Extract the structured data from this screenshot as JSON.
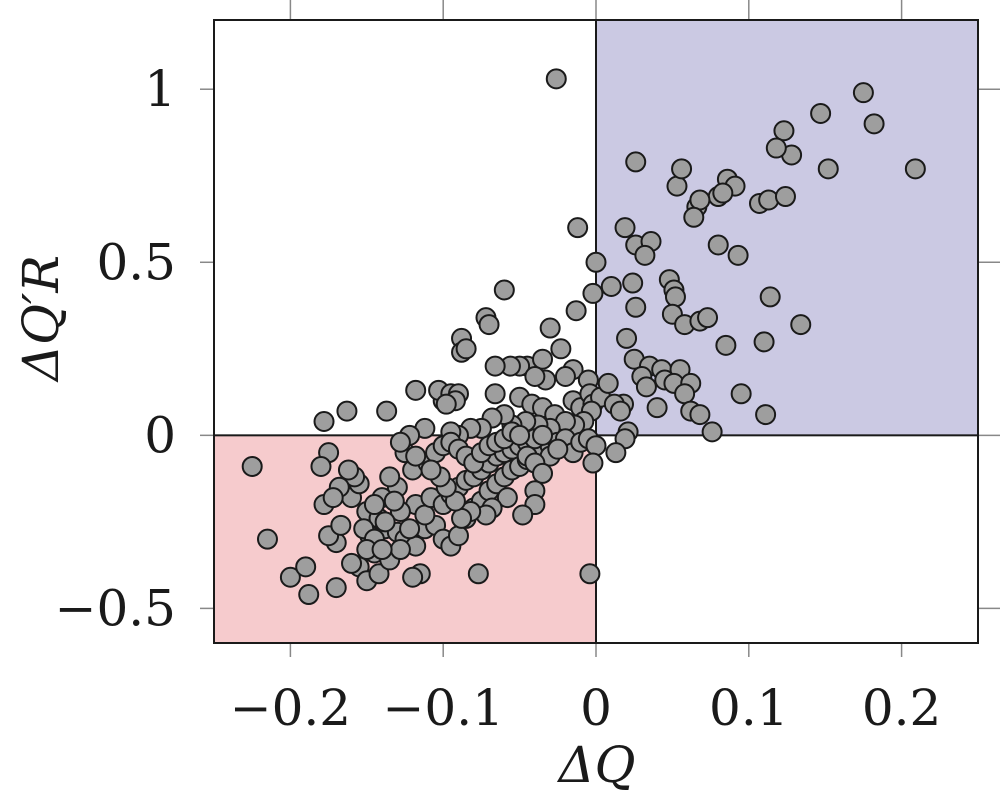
{
  "chart_data": {
    "type": "scatter",
    "title": "",
    "xlabel": "ΔQ",
    "ylabel": "ΔQ′R",
    "xlim": [
      -0.25,
      0.25
    ],
    "ylim": [
      -0.6,
      1.2
    ],
    "xticks": [
      -0.2,
      -0.1,
      0,
      0.1,
      0.2
    ],
    "yticks": [
      -0.5,
      0,
      0.5,
      1
    ],
    "xtick_labels": [
      "−0.2",
      "−0.1",
      "0",
      "0.1",
      "0.2"
    ],
    "ytick_labels": [
      "−0.5",
      "0",
      "0.5",
      "1"
    ],
    "grid": false,
    "regions": [
      {
        "x": [
          0,
          0.25
        ],
        "y": [
          0,
          1.2
        ],
        "color": "#cbc9e3"
      },
      {
        "x": [
          -0.25,
          0
        ],
        "y": [
          -0.6,
          0
        ],
        "color": "#f6cbcd"
      }
    ],
    "marker_fill": "#9e9e9e",
    "marker_edge": "#1a1a1a",
    "points": [
      [
        -0.026,
        1.03
      ],
      [
        0.175,
        0.99
      ],
      [
        0.182,
        0.9
      ],
      [
        0.147,
        0.93
      ],
      [
        0.123,
        0.88
      ],
      [
        0.128,
        0.81
      ],
      [
        0.118,
        0.83
      ],
      [
        0.152,
        0.77
      ],
      [
        0.209,
        0.77
      ],
      [
        0.053,
        0.72
      ],
      [
        0.056,
        0.77
      ],
      [
        0.026,
        0.79
      ],
      [
        0.086,
        0.74
      ],
      [
        0.091,
        0.72
      ],
      [
        0.08,
        0.69
      ],
      [
        0.083,
        0.7
      ],
      [
        0.107,
        0.67
      ],
      [
        0.113,
        0.68
      ],
      [
        0.124,
        0.69
      ],
      [
        0.066,
        0.66
      ],
      [
        0.068,
        0.68
      ],
      [
        0.064,
        0.63
      ],
      [
        0.08,
        0.55
      ],
      [
        0.093,
        0.52
      ],
      [
        0.019,
        0.6
      ],
      [
        0.026,
        0.55
      ],
      [
        0.036,
        0.56
      ],
      [
        0.032,
        0.52
      ],
      [
        0.048,
        0.45
      ],
      [
        0.051,
        0.42
      ],
      [
        0.024,
        0.44
      ],
      [
        0.114,
        0.4
      ],
      [
        0.052,
        0.4
      ],
      [
        0.026,
        0.37
      ],
      [
        0.05,
        0.35
      ],
      [
        0.058,
        0.32
      ],
      [
        0.068,
        0.33
      ],
      [
        0.073,
        0.34
      ],
      [
        0.134,
        0.32
      ],
      [
        0.11,
        0.27
      ],
      [
        0.085,
        0.26
      ],
      [
        0.02,
        0.28
      ],
      [
        0.025,
        0.22
      ],
      [
        0.035,
        0.2
      ],
      [
        0.043,
        0.19
      ],
      [
        0.055,
        0.19
      ],
      [
        0.03,
        0.17
      ],
      [
        0.045,
        0.16
      ],
      [
        0.051,
        0.15
      ],
      [
        0.033,
        0.14
      ],
      [
        0.062,
        0.15
      ],
      [
        0.058,
        0.12
      ],
      [
        0.095,
        0.12
      ],
      [
        0.04,
        0.08
      ],
      [
        0.062,
        0.07
      ],
      [
        0.068,
        0.06
      ],
      [
        0.111,
        0.06
      ],
      [
        0.076,
        0.01
      ],
      [
        0.018,
        0.09
      ],
      [
        0.021,
        0.01
      ],
      [
        0.019,
        -0.01
      ],
      [
        0.013,
        -0.05
      ],
      [
        -0.012,
        0.6
      ],
      [
        0.0,
        0.5
      ],
      [
        0.01,
        0.43
      ],
      [
        -0.002,
        0.41
      ],
      [
        -0.013,
        0.36
      ],
      [
        -0.03,
        0.31
      ],
      [
        -0.06,
        0.42
      ],
      [
        -0.072,
        0.34
      ],
      [
        -0.07,
        0.32
      ],
      [
        -0.088,
        0.28
      ],
      [
        -0.088,
        0.24
      ],
      [
        -0.085,
        0.25
      ],
      [
        -0.045,
        0.2
      ],
      [
        -0.05,
        0.2
      ],
      [
        -0.035,
        0.22
      ],
      [
        -0.023,
        0.25
      ],
      [
        -0.015,
        0.19
      ],
      [
        -0.005,
        0.16
      ],
      [
        -0.02,
        0.17
      ],
      [
        -0.033,
        0.16
      ],
      [
        -0.04,
        0.17
      ],
      [
        -0.056,
        0.2
      ],
      [
        -0.066,
        0.2
      ],
      [
        -0.066,
        0.12
      ],
      [
        -0.05,
        0.11
      ],
      [
        -0.042,
        0.09
      ],
      [
        -0.035,
        0.08
      ],
      [
        -0.027,
        0.06
      ],
      [
        -0.015,
        0.1
      ],
      [
        -0.01,
        0.08
      ],
      [
        -0.004,
        0.12
      ],
      [
        -0.002,
        0.09
      ],
      [
        0.003,
        0.11
      ],
      [
        0.008,
        0.15
      ],
      [
        0.012,
        0.09
      ],
      [
        0.016,
        0.07
      ],
      [
        -0.003,
        0.07
      ],
      [
        -0.008,
        0.04
      ],
      [
        -0.014,
        0.03
      ],
      [
        -0.02,
        0.04
      ],
      [
        -0.03,
        0.02
      ],
      [
        -0.038,
        0.03
      ],
      [
        -0.046,
        0.04
      ],
      [
        -0.055,
        0.03
      ],
      [
        -0.06,
        0.06
      ],
      [
        -0.068,
        0.05
      ],
      [
        -0.075,
        0.02
      ],
      [
        -0.082,
        0.02
      ],
      [
        -0.09,
        0.0
      ],
      [
        -0.095,
        0.01
      ],
      [
        -0.1,
        0.1
      ],
      [
        -0.103,
        0.13
      ],
      [
        -0.095,
        0.12
      ],
      [
        -0.09,
        0.12
      ],
      [
        -0.118,
        0.13
      ],
      [
        -0.137,
        0.07
      ],
      [
        -0.163,
        0.07
      ],
      [
        -0.178,
        0.04
      ],
      [
        -0.175,
        -0.05
      ],
      [
        -0.18,
        -0.09
      ],
      [
        -0.225,
        -0.09
      ],
      [
        -0.215,
        -0.3
      ],
      [
        -0.2,
        -0.41
      ],
      [
        -0.19,
        -0.38
      ],
      [
        -0.188,
        -0.46
      ],
      [
        -0.17,
        -0.44
      ],
      [
        -0.155,
        -0.38
      ],
      [
        -0.15,
        -0.42
      ],
      [
        -0.142,
        -0.4
      ],
      [
        -0.16,
        -0.37
      ],
      [
        -0.17,
        -0.31
      ],
      [
        -0.175,
        -0.29
      ],
      [
        -0.167,
        -0.26
      ],
      [
        -0.178,
        -0.2
      ],
      [
        -0.165,
        -0.16
      ],
      [
        -0.16,
        -0.18
      ],
      [
        -0.155,
        -0.14
      ],
      [
        -0.15,
        -0.22
      ],
      [
        -0.142,
        -0.24
      ],
      [
        -0.138,
        -0.27
      ],
      [
        -0.13,
        -0.28
      ],
      [
        -0.125,
        -0.3
      ],
      [
        -0.118,
        -0.32
      ],
      [
        -0.112,
        -0.27
      ],
      [
        -0.105,
        -0.26
      ],
      [
        -0.1,
        -0.3
      ],
      [
        -0.095,
        -0.32
      ],
      [
        -0.09,
        -0.29
      ],
      [
        -0.085,
        -0.24
      ],
      [
        -0.08,
        -0.21
      ],
      [
        -0.075,
        -0.19
      ],
      [
        -0.07,
        -0.16
      ],
      [
        -0.065,
        -0.14
      ],
      [
        -0.06,
        -0.12
      ],
      [
        -0.055,
        -0.1
      ],
      [
        -0.05,
        -0.09
      ],
      [
        -0.045,
        -0.07
      ],
      [
        -0.04,
        -0.05
      ],
      [
        -0.035,
        -0.04
      ],
      [
        -0.03,
        -0.03
      ],
      [
        -0.025,
        -0.02
      ],
      [
        -0.02,
        -0.01
      ],
      [
        -0.015,
        -0.05
      ],
      [
        -0.01,
        -0.02
      ],
      [
        -0.005,
        -0.01
      ],
      [
        0.0,
        -0.03
      ],
      [
        -0.002,
        -0.08
      ],
      [
        -0.004,
        -0.4
      ],
      [
        -0.077,
        -0.4
      ],
      [
        -0.115,
        -0.4
      ],
      [
        -0.12,
        -0.41
      ],
      [
        -0.145,
        -0.34
      ],
      [
        -0.148,
        -0.29
      ],
      [
        -0.152,
        -0.27
      ],
      [
        -0.135,
        -0.36
      ],
      [
        -0.128,
        -0.33
      ],
      [
        -0.122,
        -0.27
      ],
      [
        -0.118,
        -0.2
      ],
      [
        -0.112,
        -0.23
      ],
      [
        -0.108,
        -0.18
      ],
      [
        -0.1,
        -0.2
      ],
      [
        -0.095,
        -0.17
      ],
      [
        -0.09,
        -0.15
      ],
      [
        -0.085,
        -0.13
      ],
      [
        -0.08,
        -0.12
      ],
      [
        -0.075,
        -0.1
      ],
      [
        -0.07,
        -0.08
      ],
      [
        -0.065,
        -0.06
      ],
      [
        -0.06,
        -0.05
      ],
      [
        -0.055,
        -0.04
      ],
      [
        -0.05,
        -0.03
      ],
      [
        -0.045,
        -0.02
      ],
      [
        -0.04,
        -0.01
      ],
      [
        -0.035,
        0.0
      ],
      [
        -0.03,
        -0.06
      ],
      [
        -0.025,
        -0.04
      ],
      [
        -0.12,
        -0.1
      ],
      [
        -0.125,
        -0.05
      ],
      [
        -0.13,
        -0.15
      ],
      [
        -0.135,
        -0.12
      ],
      [
        -0.14,
        -0.18
      ],
      [
        -0.145,
        -0.2
      ],
      [
        -0.158,
        -0.12
      ],
      [
        -0.162,
        -0.1
      ],
      [
        -0.168,
        -0.15
      ],
      [
        -0.172,
        -0.18
      ],
      [
        -0.11,
        -0.08
      ],
      [
        -0.105,
        -0.05
      ],
      [
        -0.1,
        -0.03
      ],
      [
        -0.095,
        -0.02
      ],
      [
        -0.09,
        -0.04
      ],
      [
        -0.085,
        -0.06
      ],
      [
        -0.08,
        -0.08
      ],
      [
        -0.075,
        -0.05
      ],
      [
        -0.07,
        -0.03
      ],
      [
        -0.065,
        -0.02
      ],
      [
        -0.06,
        -0.01
      ],
      [
        -0.055,
        0.01
      ],
      [
        -0.05,
        0.0
      ],
      [
        -0.045,
        -0.06
      ],
      [
        -0.04,
        -0.08
      ],
      [
        -0.035,
        -0.11
      ],
      [
        -0.04,
        -0.16
      ],
      [
        -0.04,
        -0.2
      ],
      [
        -0.048,
        -0.23
      ],
      [
        -0.058,
        -0.18
      ],
      [
        -0.068,
        -0.21
      ],
      [
        -0.072,
        -0.23
      ],
      [
        -0.082,
        -0.22
      ],
      [
        -0.088,
        -0.24
      ],
      [
        -0.092,
        -0.19
      ],
      [
        -0.098,
        -0.15
      ],
      [
        -0.102,
        -0.12
      ],
      [
        -0.108,
        -0.1
      ],
      [
        -0.128,
        -0.22
      ],
      [
        -0.132,
        -0.19
      ],
      [
        -0.138,
        -0.25
      ],
      [
        -0.145,
        -0.3
      ],
      [
        -0.15,
        -0.33
      ],
      [
        -0.14,
        -0.33
      ],
      [
        -0.118,
        -0.06
      ],
      [
        -0.112,
        0.02
      ],
      [
        -0.122,
        0.0
      ],
      [
        -0.128,
        -0.02
      ],
      [
        -0.092,
        0.1
      ],
      [
        -0.098,
        0.09
      ]
    ]
  }
}
